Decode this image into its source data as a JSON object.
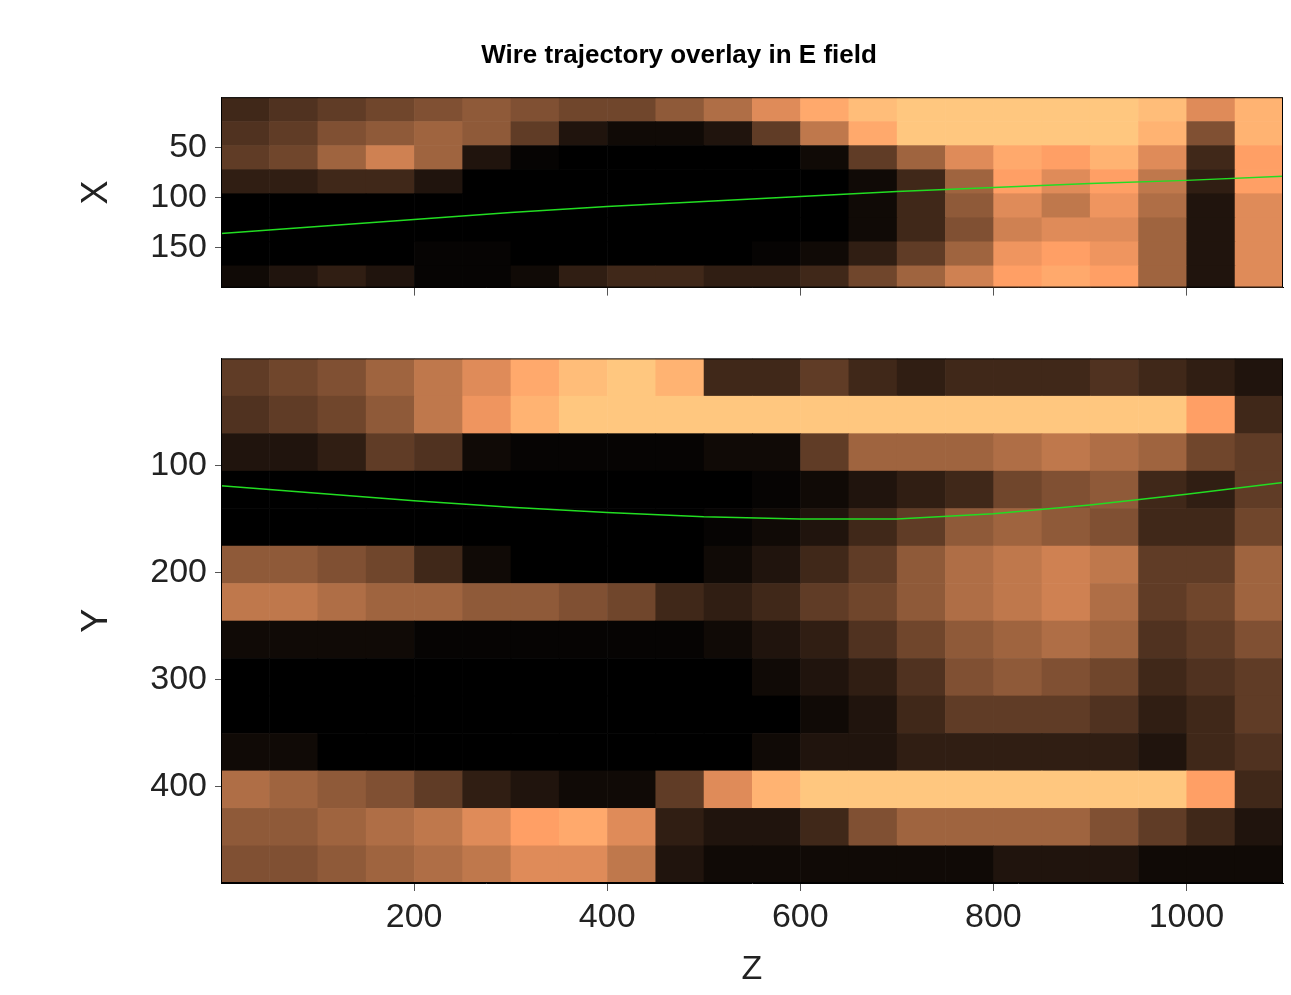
{
  "chart_data": [
    {
      "type": "heatmap",
      "title": "Wire trajectory overlay in E field",
      "y_label": "X",
      "xlim": [
        0,
        1100
      ],
      "ylim": [
        0,
        190
      ],
      "xticks": [
        200,
        400,
        600,
        800,
        1000
      ],
      "yticks": [
        50,
        100,
        150
      ],
      "tick_labels": "y",
      "grid": false,
      "cells": {
        "x_bins": [
          0,
          50,
          100,
          150,
          200,
          250,
          300,
          350,
          400,
          450,
          500,
          550,
          600,
          650,
          700,
          750,
          800,
          850,
          900,
          950,
          1000,
          1050,
          1100
        ],
        "y_bins": [
          0,
          24,
          48,
          72,
          96,
          120,
          144,
          168,
          190
        ],
        "values": [
          [
            0.2,
            0.25,
            0.3,
            0.35,
            0.4,
            0.45,
            0.4,
            0.35,
            0.35,
            0.45,
            0.55,
            0.7,
            0.85,
            0.95,
            1,
            1,
            1,
            1,
            1,
            0.95,
            0.7,
            0.9
          ],
          [
            0.25,
            0.3,
            0.4,
            0.45,
            0.5,
            0.45,
            0.3,
            0.1,
            0.05,
            0.05,
            0.1,
            0.3,
            0.6,
            0.85,
            1,
            1,
            1,
            1,
            1,
            0.9,
            0.4,
            0.9
          ],
          [
            0.3,
            0.35,
            0.5,
            0.65,
            0.5,
            0.1,
            0.02,
            0,
            0,
            0,
            0,
            0,
            0.05,
            0.3,
            0.5,
            0.7,
            0.85,
            0.8,
            0.9,
            0.7,
            0.2,
            0.8
          ],
          [
            0.15,
            0.15,
            0.2,
            0.2,
            0.1,
            0,
            0,
            0,
            0,
            0,
            0,
            0,
            0,
            0.05,
            0.2,
            0.5,
            0.8,
            0.7,
            0.8,
            0.6,
            0.15,
            0.8
          ],
          [
            0,
            0,
            0,
            0,
            0,
            0,
            0,
            0,
            0,
            0,
            0,
            0,
            0,
            0.05,
            0.2,
            0.45,
            0.7,
            0.6,
            0.75,
            0.55,
            0.1,
            0.7
          ],
          [
            0,
            0,
            0,
            0,
            0,
            0,
            0,
            0,
            0,
            0,
            0,
            0,
            0,
            0.05,
            0.2,
            0.4,
            0.65,
            0.7,
            0.7,
            0.5,
            0.1,
            0.7
          ],
          [
            0,
            0,
            0,
            0,
            0.02,
            0.02,
            0,
            0,
            0,
            0,
            0,
            0.02,
            0.05,
            0.15,
            0.3,
            0.5,
            0.75,
            0.8,
            0.75,
            0.5,
            0.1,
            0.7
          ],
          [
            0.05,
            0.1,
            0.15,
            0.1,
            0.02,
            0.02,
            0.05,
            0.15,
            0.2,
            0.2,
            0.15,
            0.15,
            0.2,
            0.35,
            0.5,
            0.65,
            0.8,
            0.85,
            0.8,
            0.5,
            0.1,
            0.7
          ]
        ]
      },
      "series": [
        {
          "type": "line",
          "color": "#22dd22",
          "x": [
            0,
            100,
            200,
            300,
            400,
            500,
            600,
            700,
            800,
            900,
            1000,
            1100
          ],
          "values": [
            136,
            129,
            122,
            115,
            109,
            104,
            99,
            94,
            90,
            86,
            83,
            79
          ]
        }
      ]
    },
    {
      "type": "heatmap",
      "x_label": "Z",
      "y_label": "Y",
      "xlim": [
        0,
        1100
      ],
      "ylim": [
        0,
        490
      ],
      "xticks": [
        200,
        400,
        600,
        800,
        1000
      ],
      "yticks": [
        100,
        200,
        300,
        400
      ],
      "grid": false,
      "cells": {
        "x_bins": [
          0,
          50,
          100,
          150,
          200,
          250,
          300,
          350,
          400,
          450,
          500,
          550,
          600,
          650,
          700,
          750,
          800,
          850,
          900,
          950,
          1000,
          1050,
          1100
        ],
        "y_bins": [
          0,
          35,
          70,
          105,
          140,
          175,
          210,
          245,
          280,
          315,
          350,
          385,
          420,
          455,
          490
        ],
        "values": [
          [
            0.3,
            0.35,
            0.4,
            0.5,
            0.6,
            0.7,
            0.85,
            0.95,
            1,
            0.9,
            0.2,
            0.2,
            0.3,
            0.2,
            0.15,
            0.2,
            0.2,
            0.2,
            0.25,
            0.2,
            0.15,
            0.1
          ],
          [
            0.25,
            0.3,
            0.35,
            0.45,
            0.6,
            0.75,
            0.9,
            1,
            1,
            1,
            1,
            1,
            1,
            1,
            1,
            1,
            1,
            1,
            1,
            1,
            0.8,
            0.2
          ],
          [
            0.1,
            0.1,
            0.15,
            0.3,
            0.25,
            0.05,
            0.02,
            0.02,
            0.02,
            0.02,
            0.05,
            0.05,
            0.3,
            0.5,
            0.5,
            0.5,
            0.55,
            0.6,
            0.55,
            0.5,
            0.35,
            0.3
          ],
          [
            0,
            0,
            0,
            0,
            0,
            0,
            0,
            0,
            0,
            0,
            0,
            0.02,
            0.05,
            0.1,
            0.15,
            0.2,
            0.35,
            0.4,
            0.45,
            0.2,
            0.15,
            0.3
          ],
          [
            0,
            0,
            0,
            0,
            0,
            0,
            0,
            0,
            0,
            0,
            0.02,
            0.05,
            0.1,
            0.2,
            0.3,
            0.45,
            0.5,
            0.45,
            0.4,
            0.2,
            0.2,
            0.35
          ],
          [
            0.45,
            0.45,
            0.4,
            0.35,
            0.2,
            0.05,
            0,
            0,
            0,
            0,
            0.05,
            0.1,
            0.2,
            0.3,
            0.45,
            0.55,
            0.6,
            0.65,
            0.6,
            0.3,
            0.3,
            0.5
          ],
          [
            0.6,
            0.6,
            0.55,
            0.5,
            0.5,
            0.45,
            0.45,
            0.4,
            0.35,
            0.2,
            0.15,
            0.2,
            0.3,
            0.35,
            0.45,
            0.55,
            0.6,
            0.65,
            0.55,
            0.3,
            0.35,
            0.5
          ],
          [
            0.05,
            0.05,
            0.05,
            0.05,
            0.02,
            0.02,
            0.02,
            0.02,
            0.02,
            0.02,
            0.05,
            0.1,
            0.15,
            0.25,
            0.35,
            0.45,
            0.5,
            0.55,
            0.5,
            0.25,
            0.3,
            0.4
          ],
          [
            0,
            0,
            0,
            0,
            0,
            0,
            0,
            0,
            0,
            0,
            0,
            0.05,
            0.1,
            0.15,
            0.25,
            0.4,
            0.45,
            0.4,
            0.35,
            0.2,
            0.25,
            0.3
          ],
          [
            0,
            0,
            0,
            0,
            0,
            0,
            0,
            0,
            0,
            0,
            0,
            0,
            0.05,
            0.1,
            0.2,
            0.3,
            0.3,
            0.3,
            0.25,
            0.15,
            0.2,
            0.3
          ],
          [
            0.05,
            0.05,
            0,
            0,
            0,
            0,
            0,
            0,
            0,
            0,
            0,
            0.05,
            0.1,
            0.1,
            0.15,
            0.15,
            0.15,
            0.15,
            0.15,
            0.1,
            0.2,
            0.25
          ],
          [
            0.55,
            0.5,
            0.45,
            0.4,
            0.3,
            0.15,
            0.1,
            0.05,
            0.05,
            0.3,
            0.7,
            0.9,
            1,
            1,
            1,
            1,
            1,
            1,
            1,
            1,
            0.8,
            0.2
          ],
          [
            0.45,
            0.45,
            0.5,
            0.55,
            0.6,
            0.7,
            0.8,
            0.85,
            0.7,
            0.15,
            0.1,
            0.1,
            0.2,
            0.4,
            0.5,
            0.5,
            0.5,
            0.5,
            0.4,
            0.3,
            0.2,
            0.1
          ],
          [
            0.4,
            0.4,
            0.45,
            0.5,
            0.55,
            0.6,
            0.7,
            0.7,
            0.6,
            0.1,
            0.05,
            0.05,
            0.05,
            0.05,
            0.05,
            0.05,
            0.1,
            0.1,
            0.1,
            0.05,
            0.05,
            0.05
          ]
        ]
      },
      "series": [
        {
          "type": "line",
          "color": "#22dd22",
          "x": [
            0,
            100,
            200,
            300,
            400,
            500,
            600,
            700,
            800,
            900,
            1000,
            1100
          ],
          "values": [
            119,
            126,
            133,
            139,
            144,
            148,
            150,
            150,
            145,
            137,
            127,
            116
          ]
        }
      ]
    }
  ]
}
